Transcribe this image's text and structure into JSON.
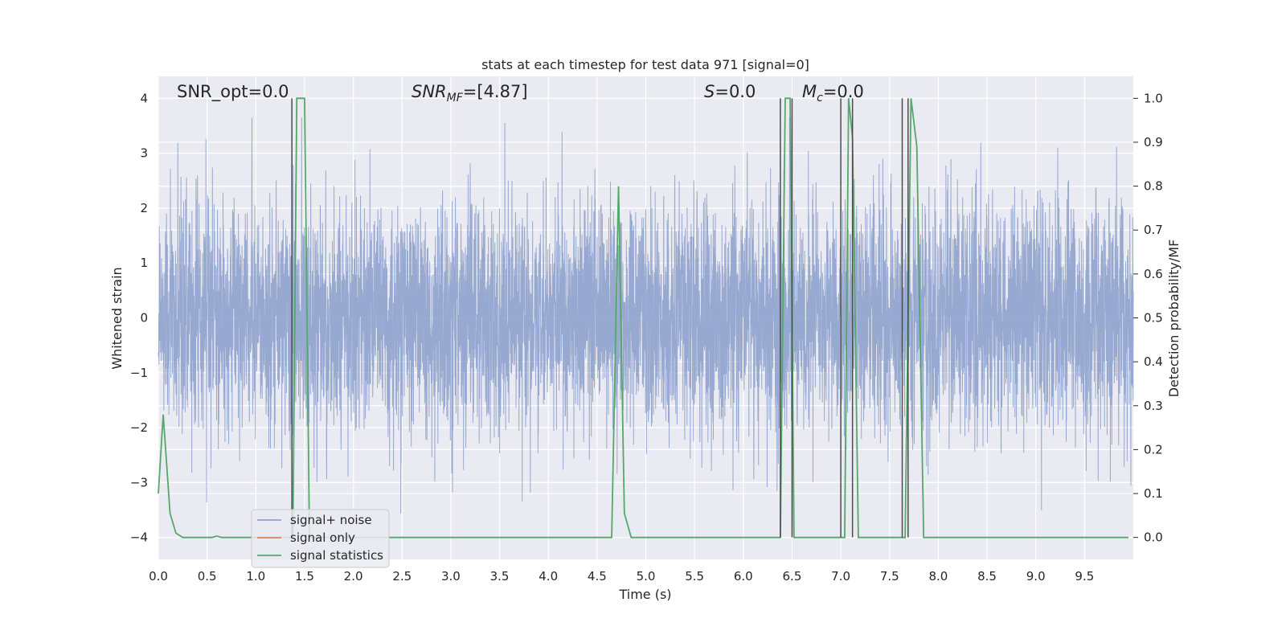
{
  "chart_data": {
    "type": "line",
    "title": "stats at each timestep for test data 971 [signal=0]",
    "xlabel": "Time (s)",
    "ylabel": "Whitened strain",
    "y2label": "Detection probability/MF",
    "xlim": [
      0.0,
      10.0
    ],
    "ylim": [
      -4.4,
      4.4
    ],
    "y2lim": [
      -0.05,
      1.05
    ],
    "x_ticks": [
      "0.0",
      "0.5",
      "1.0",
      "1.5",
      "2.0",
      "2.5",
      "3.0",
      "3.5",
      "4.0",
      "4.5",
      "5.0",
      "5.5",
      "6.0",
      "6.5",
      "7.0",
      "7.5",
      "8.0",
      "8.5",
      "9.0",
      "9.5"
    ],
    "y_ticks": [
      "4",
      "3",
      "2",
      "1",
      "0",
      "−1",
      "−2",
      "−3",
      "−4"
    ],
    "y2_ticks": [
      "1.0",
      "0.9",
      "0.8",
      "0.7",
      "0.6",
      "0.5",
      "0.4",
      "0.3",
      "0.2",
      "0.1",
      "0.0"
    ],
    "grid": true,
    "legend_position": "lower-left",
    "annotations": {
      "snr_opt": "SNR_opt=0.0",
      "snr_mf_symbol": "SNR",
      "snr_mf_sub": "MF",
      "snr_mf_value": "=[4.87]",
      "s_symbol": "S",
      "s_value": "=0.0",
      "mc_symbol": "M",
      "mc_sub": "c",
      "mc_value": "=0.0"
    },
    "series": [
      {
        "name": "signal+ noise",
        "color": "#8ea2cc",
        "axis": "left",
        "kind": "noise",
        "noise_sigma": 1.0,
        "noise_range": [
          -3.8,
          3.65
        ],
        "sample_rate_hz": 1000
      },
      {
        "name": "signal only",
        "color": "#dd8452",
        "axis": "left",
        "x": [],
        "y": []
      },
      {
        "name": "signal statistics",
        "color": "#55a868",
        "axis": "right",
        "x": [
          0.0,
          0.05,
          0.12,
          0.18,
          0.25,
          0.3,
          0.55,
          0.6,
          0.65,
          0.7,
          1.35,
          1.38,
          1.42,
          1.45,
          1.5,
          1.55,
          1.6,
          4.6,
          4.65,
          4.72,
          4.78,
          4.85,
          6.38,
          6.43,
          6.48,
          6.52,
          6.6,
          6.98,
          7.04,
          7.08,
          7.12,
          7.18,
          7.6,
          7.66,
          7.72,
          7.78,
          7.85,
          9.95
        ],
        "y": [
          0.1,
          0.28,
          0.055,
          0.01,
          0.0,
          0.0,
          0.0,
          0.003,
          0.0,
          0.0,
          0.0,
          0.0,
          1.0,
          1.0,
          1.0,
          0.0,
          0.0,
          0.0,
          0.0,
          0.8,
          0.055,
          0.0,
          0.0,
          1.0,
          1.0,
          0.0,
          0.0,
          0.0,
          0.0,
          1.0,
          0.91,
          0.0,
          0.0,
          0.0,
          1.0,
          0.89,
          0.0,
          0.0
        ]
      }
    ],
    "vertical_markers": {
      "color": "#4c4c4c",
      "x": [
        1.37,
        6.38,
        6.5,
        7.0,
        7.12,
        7.63,
        7.69
      ]
    }
  }
}
